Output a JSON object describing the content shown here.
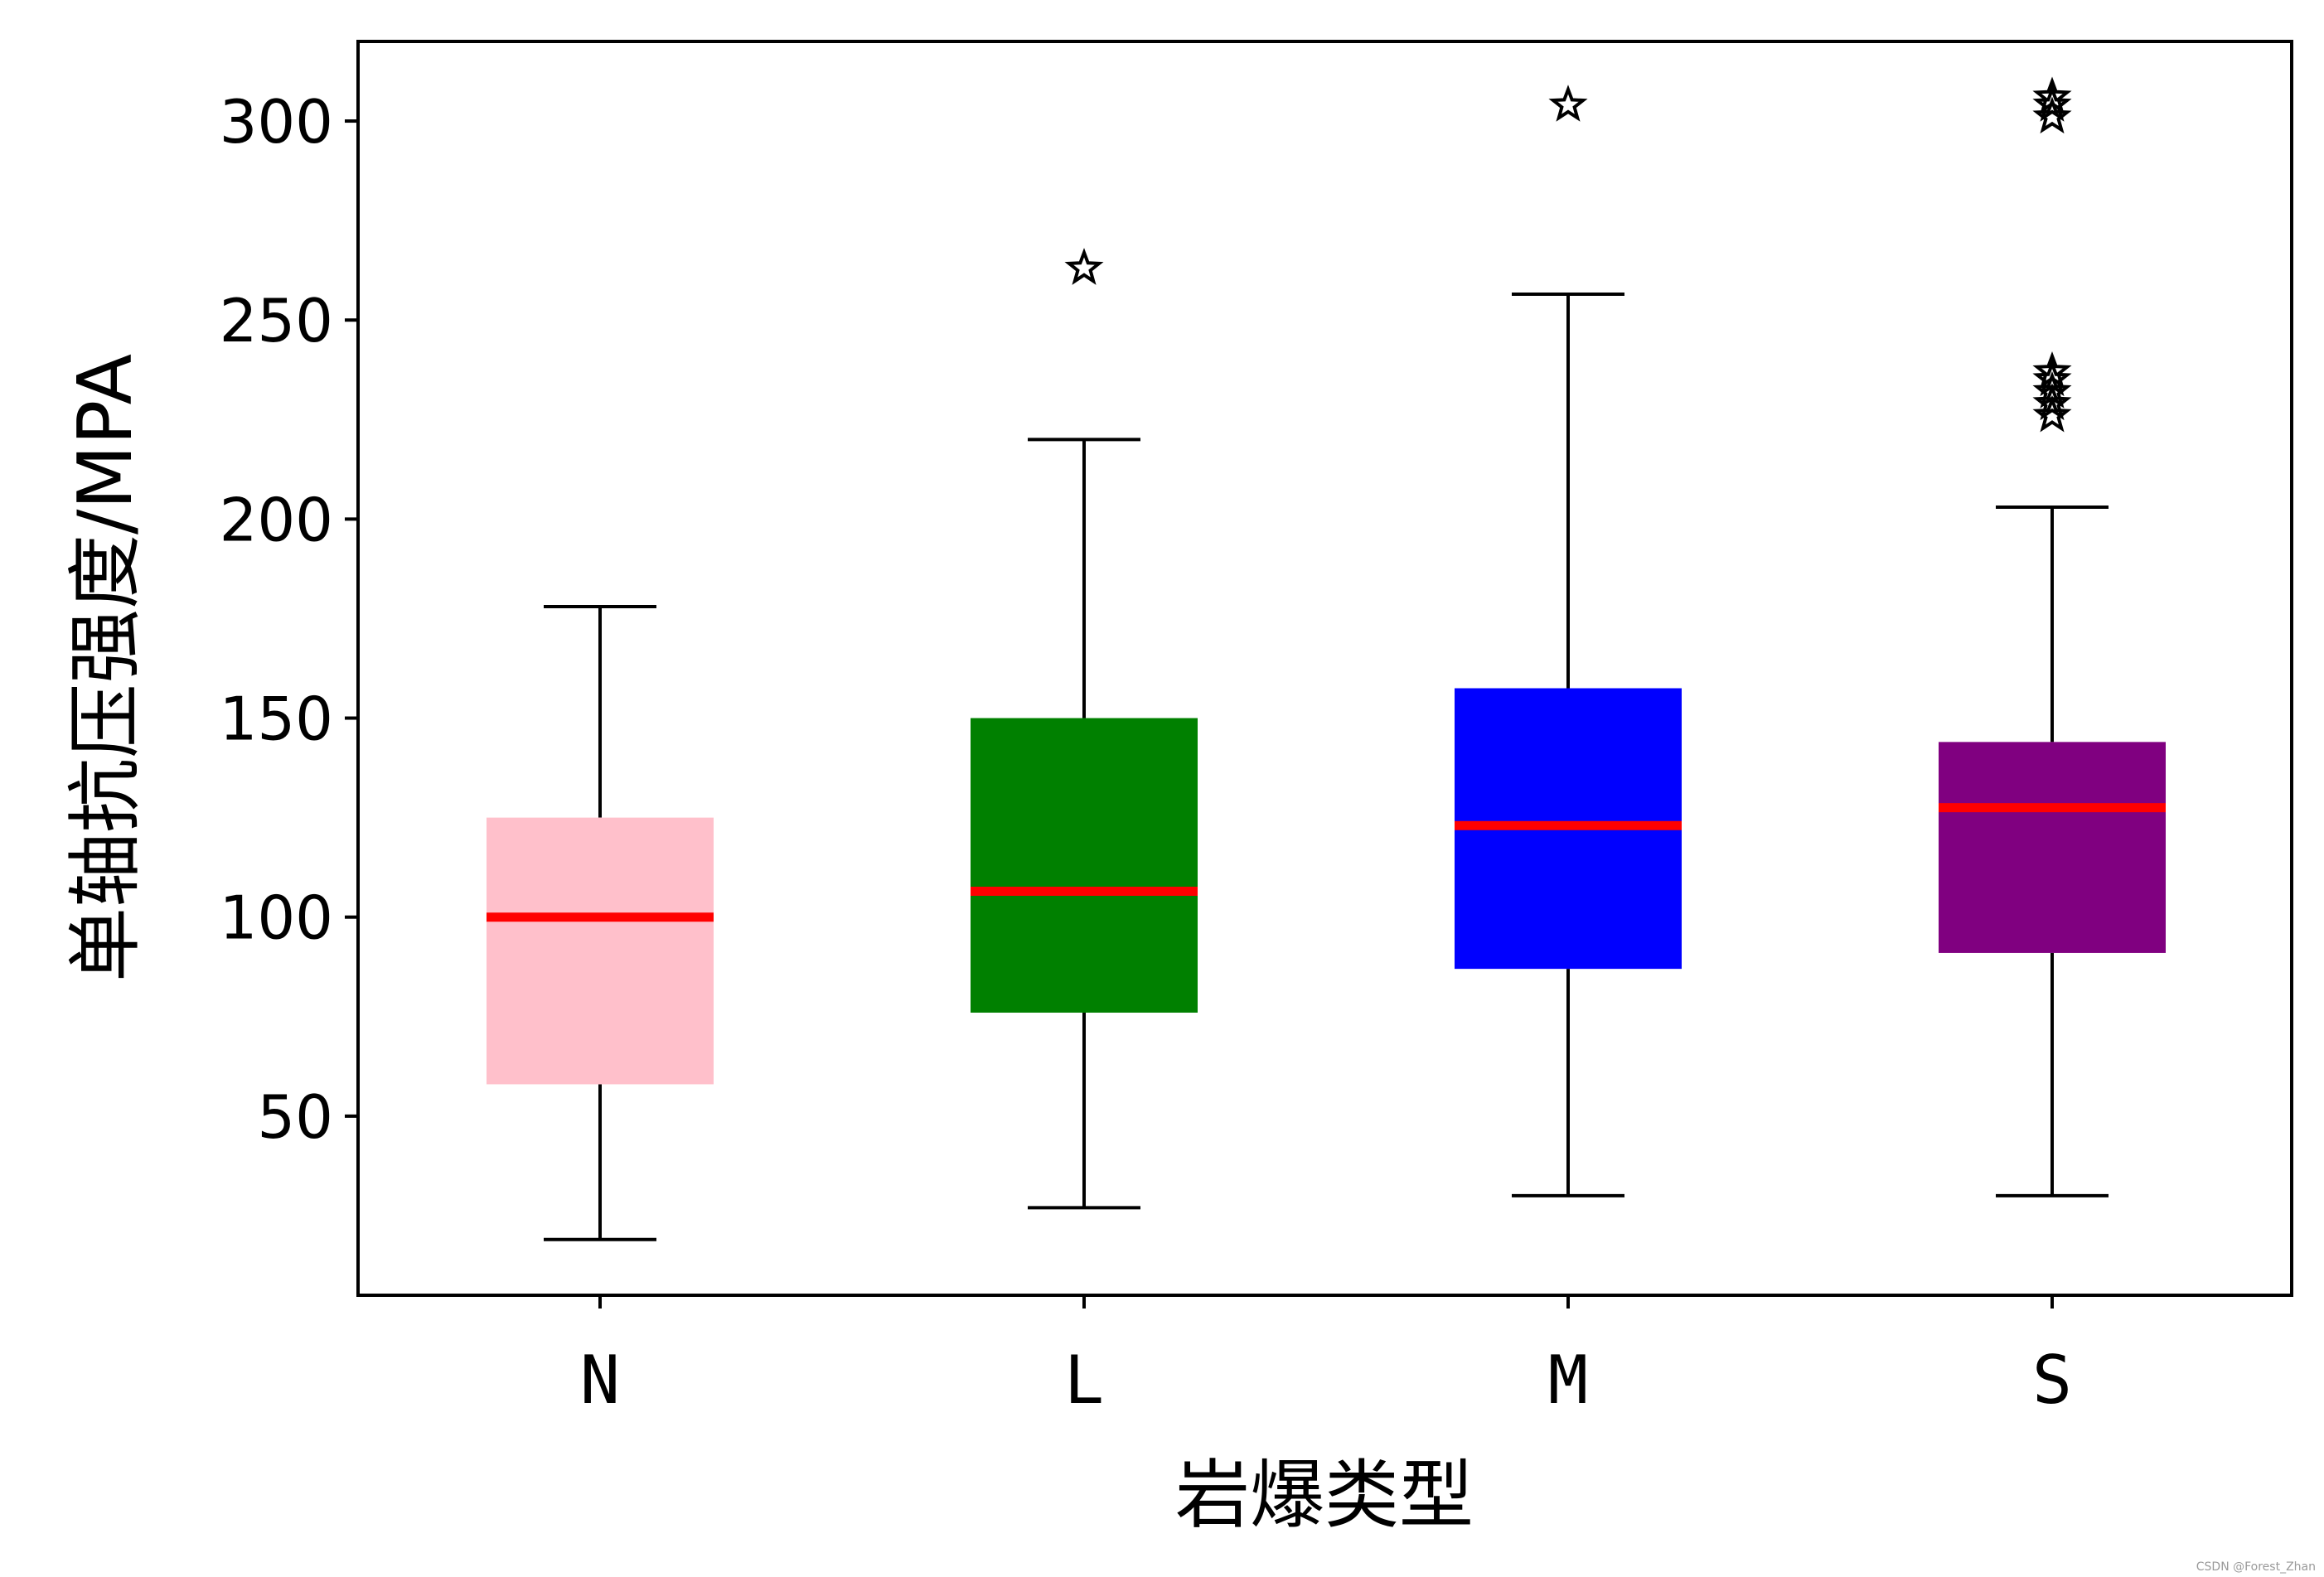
{
  "chart_data": {
    "type": "box",
    "categories": [
      "N",
      "L",
      "M",
      "S"
    ],
    "xlabel": "岩爆类型",
    "ylabel": "单轴抗压强度/MPA",
    "ylim": [
      5,
      320
    ],
    "yticks": [
      50,
      100,
      150,
      200,
      250,
      300
    ],
    "grid": false,
    "legend": "none",
    "whisker_color": "#000000",
    "median_color": "#ff0000",
    "flier_marker": "star",
    "boxes": [
      {
        "category": "N",
        "color": "#ffc0cb",
        "whisker_low": 19,
        "q1": 58,
        "median": 100,
        "q3": 125,
        "whisker_high": 178,
        "outliers": []
      },
      {
        "category": "L",
        "color": "#008000",
        "whisker_low": 27,
        "q1": 76,
        "median": 106.5,
        "q3": 150,
        "whisker_high": 220,
        "outliers": [
          263
        ]
      },
      {
        "category": "M",
        "color": "#0000ff",
        "whisker_low": 30,
        "q1": 87,
        "median": 123,
        "q3": 157.5,
        "whisker_high": 256.5,
        "outliers": [
          304
        ]
      },
      {
        "category": "S",
        "color": "#800080",
        "whisker_low": 30,
        "q1": 91,
        "median": 127.5,
        "q3": 144,
        "whisker_high": 203,
        "outliers": [
          226,
          229,
          232,
          235,
          237,
          301,
          304,
          306
        ]
      }
    ]
  },
  "watermark": "CSDN @Forest_Zhan"
}
